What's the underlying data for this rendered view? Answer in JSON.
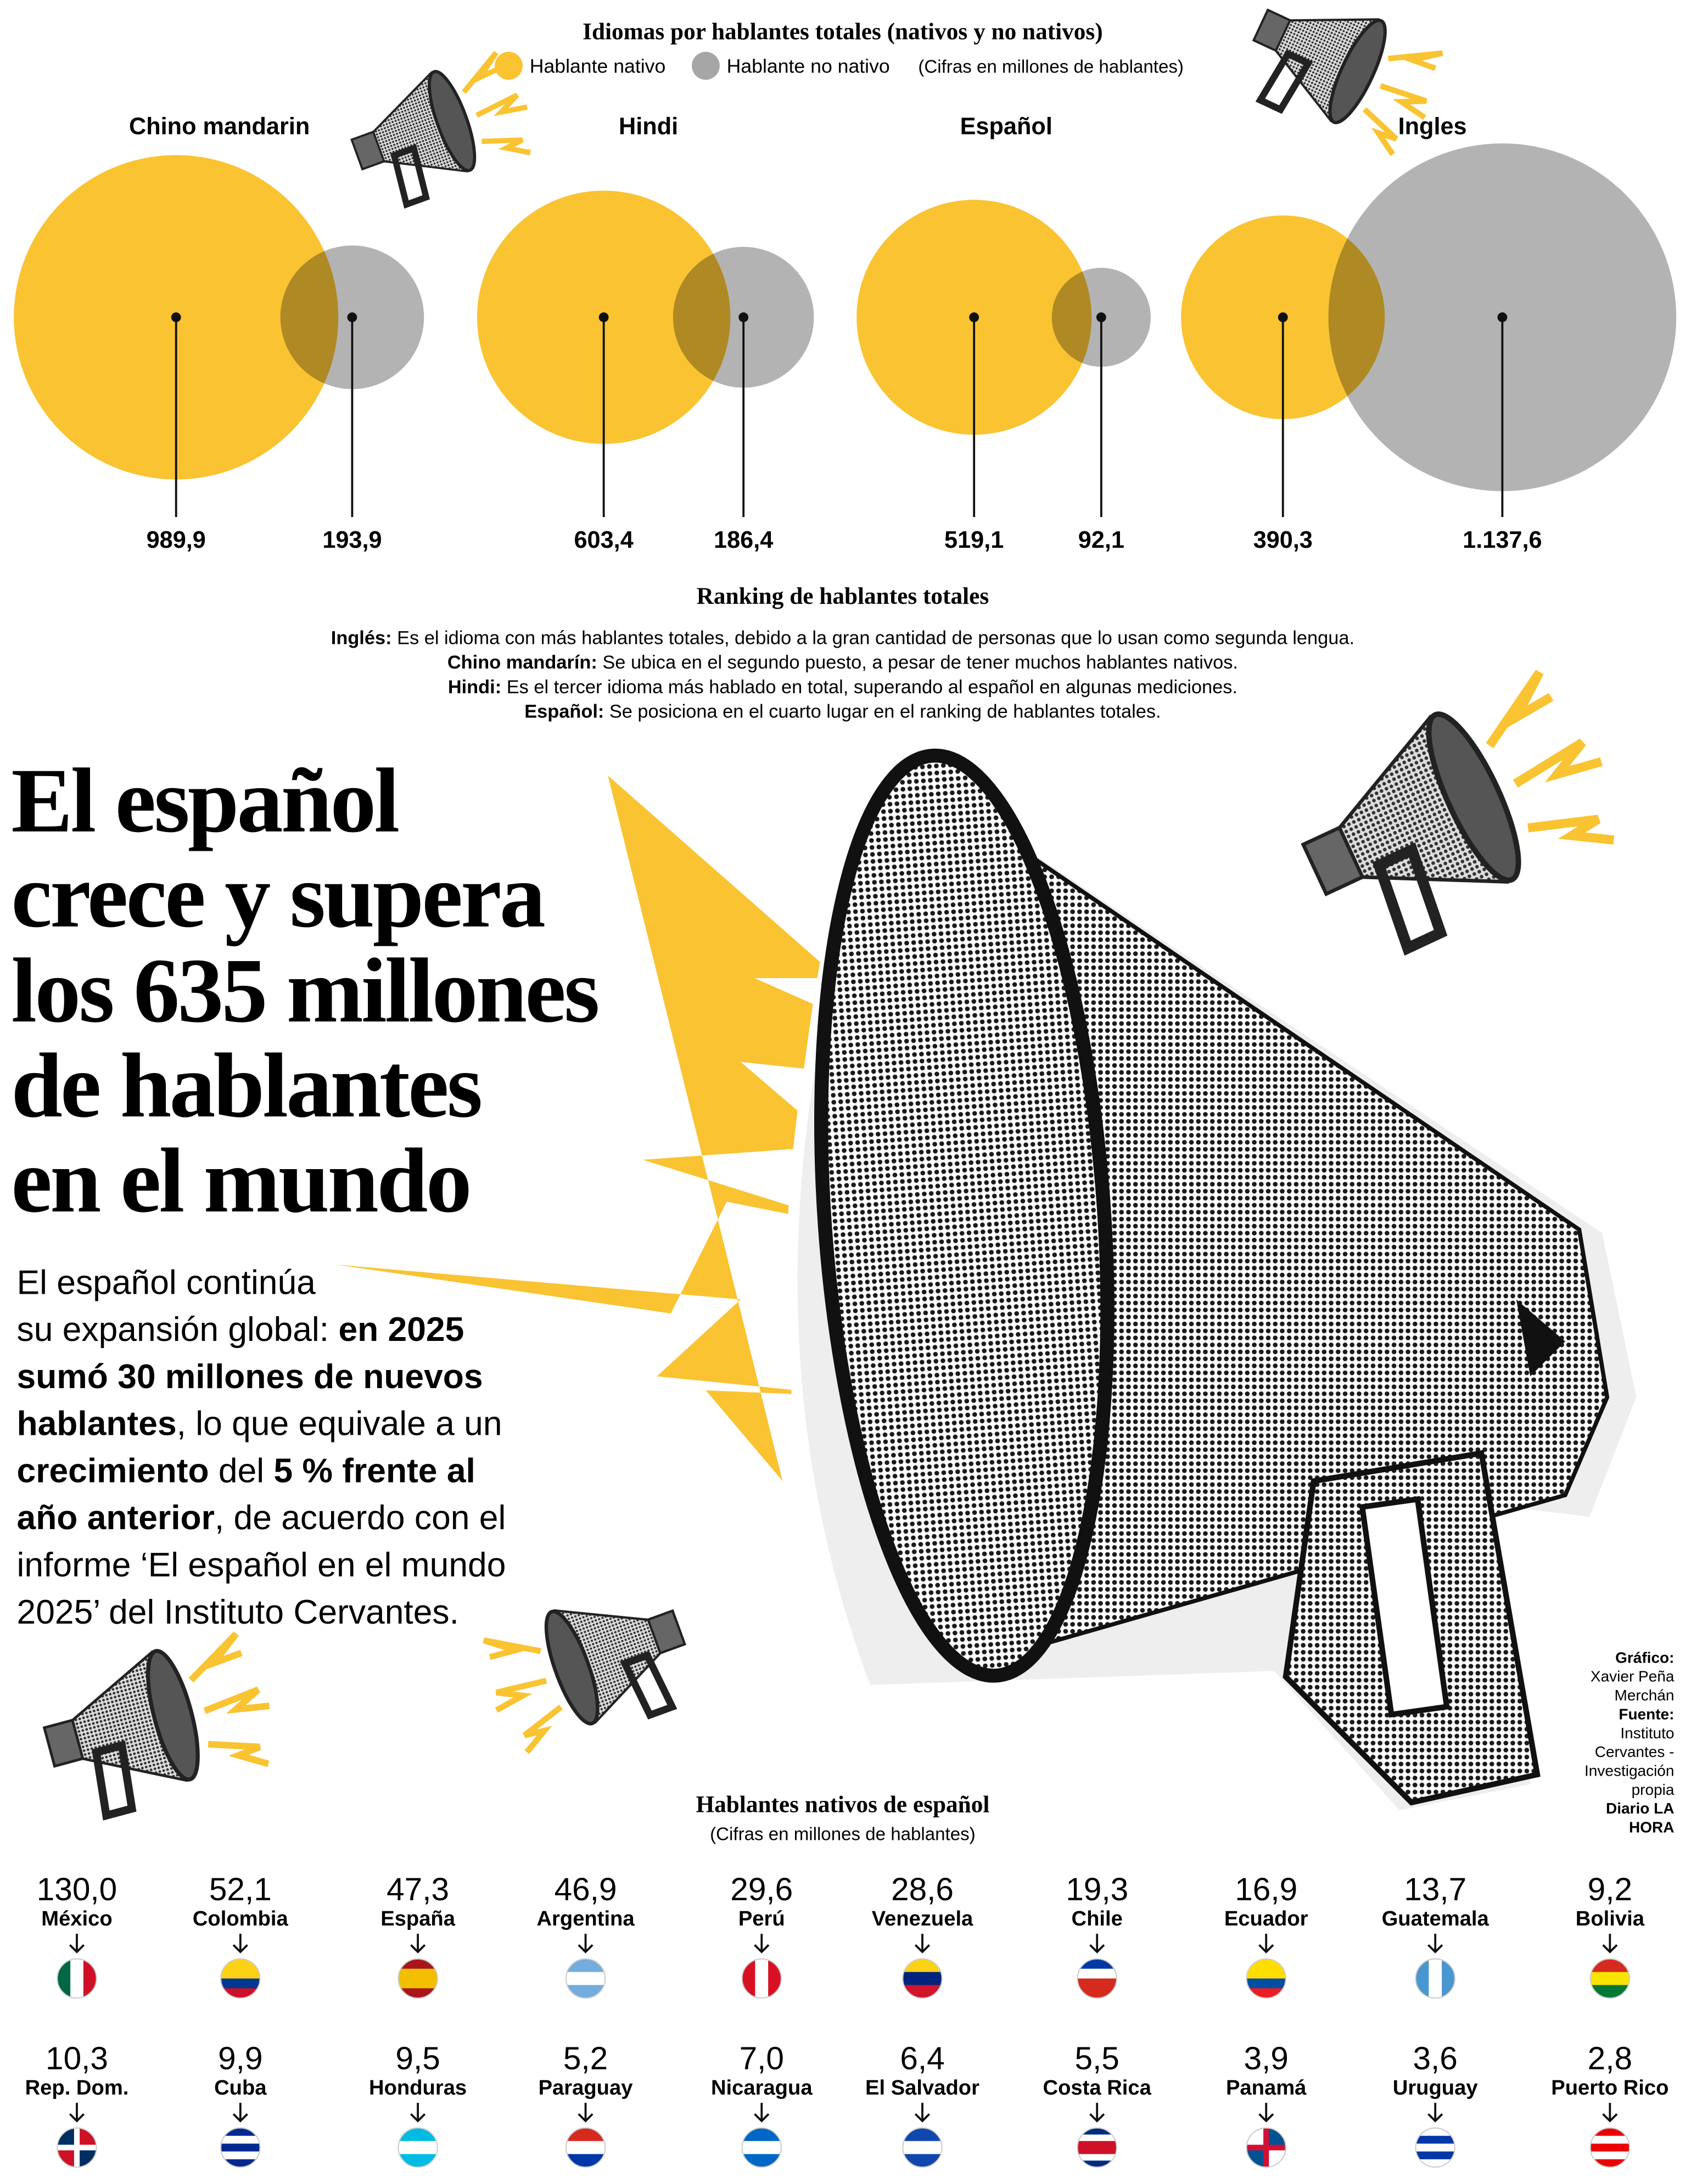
{
  "chart_data": {
    "type": "bubble",
    "title": "Idiomas por hablantes totales (nativos y no nativos)",
    "subtitle": "(Cifras en millones de hablantes)",
    "categories": [
      "Chino mandarin",
      "Hindi",
      "Español",
      "Ingles"
    ],
    "series": [
      {
        "name": "Hablante nativo",
        "color": "#f9c332",
        "values": [
          989.9,
          603.4,
          519.1,
          390.3
        ],
        "value_labels": [
          "989,9",
          "603,4",
          "519,1",
          "390,3"
        ]
      },
      {
        "name": "Hablante no nativo",
        "color": "#a6a6a6",
        "values": [
          193.9,
          186.4,
          92.1,
          1137.6
        ],
        "value_labels": [
          "193,9",
          "186,4",
          "92,1",
          "1.137,6"
        ]
      }
    ]
  },
  "ranking": {
    "title": "Ranking de hablantes totales",
    "items": [
      {
        "term": "Inglés:",
        "text": "Es el idioma con más hablantes totales, debido a la gran cantidad de personas que lo usan como segunda lengua."
      },
      {
        "term": "Chino mandarín:",
        "text": "Se ubica en el segundo puesto, a pesar de tener muchos hablantes nativos."
      },
      {
        "term": "Hindi:",
        "text": "Es el tercer idioma más hablado en total, superando al español en algunas mediciones."
      },
      {
        "term": "Español:",
        "text": "Se posiciona en el cuarto lugar en el ranking de hablantes totales."
      }
    ]
  },
  "headline": [
    "El español",
    "crece y supera",
    "los 635 millones",
    "de hablantes",
    "en el mundo"
  ],
  "body": [
    [
      {
        "text": "El español continúa",
        "bold": false
      }
    ],
    [
      {
        "text": "su expansión global: ",
        "bold": false
      },
      {
        "text": "en 2025",
        "bold": true
      }
    ],
    [
      {
        "text": "sumó 30 millones de nuevos",
        "bold": true
      }
    ],
    [
      {
        "text": "hablantes",
        "bold": true
      },
      {
        "text": ", lo que equivale a un",
        "bold": false
      }
    ],
    [
      {
        "text": "crecimiento",
        "bold": true
      },
      {
        "text": " del ",
        "bold": false
      },
      {
        "text": "5 % frente al",
        "bold": true
      }
    ],
    [
      {
        "text": "año anterior",
        "bold": true
      },
      {
        "text": ", de acuerdo con el",
        "bold": false
      }
    ],
    [
      {
        "text": "informe ‘El español en el mundo",
        "bold": false
      }
    ],
    [
      {
        "text": "2025’ del Instituto Cervantes.",
        "bold": false
      }
    ]
  ],
  "credits": [
    {
      "text": "Gráfico:",
      "bold": true
    },
    {
      "text": "Xavier Peña",
      "bold": false
    },
    {
      "text": "Merchán",
      "bold": false
    },
    {
      "text": "Fuente:",
      "bold": true
    },
    {
      "text": "Instituto",
      "bold": false
    },
    {
      "text": "Cervantes -",
      "bold": false
    },
    {
      "text": "Investigación",
      "bold": false
    },
    {
      "text": "propia",
      "bold": false
    },
    {
      "text": "Diario LA",
      "bold": true
    },
    {
      "text": "HORA",
      "bold": true
    }
  ],
  "natives": {
    "title": "Hablantes nativos de español",
    "subtitle": "(Cifras en millones de hablantes)",
    "countries": [
      {
        "value": "130,0",
        "name": "México"
      },
      {
        "value": "52,1",
        "name": "Colombia"
      },
      {
        "value": "47,3",
        "name": "España"
      },
      {
        "value": "46,9",
        "name": "Argentina"
      },
      {
        "value": "29,6",
        "name": "Perú"
      },
      {
        "value": "28,6",
        "name": "Venezuela"
      },
      {
        "value": "19,3",
        "name": "Chile"
      },
      {
        "value": "16,9",
        "name": "Ecuador"
      },
      {
        "value": "13,7",
        "name": "Guatemala"
      },
      {
        "value": "9,2",
        "name": "Bolivia"
      },
      {
        "value": "10,3",
        "name": "Rep. Dom."
      },
      {
        "value": "9,9",
        "name": "Cuba"
      },
      {
        "value": "9,5",
        "name": "Honduras"
      },
      {
        "value": "5,2",
        "name": "Paraguay"
      },
      {
        "value": "7,0",
        "name": "Nicaragua"
      },
      {
        "value": "6,4",
        "name": "El Salvador"
      },
      {
        "value": "5,5",
        "name": "Costa Rica"
      },
      {
        "value": "3,9",
        "name": "Panamá"
      },
      {
        "value": "3,6",
        "name": "Uruguay"
      },
      {
        "value": "2,8",
        "name": "Puerto Rico"
      }
    ]
  }
}
